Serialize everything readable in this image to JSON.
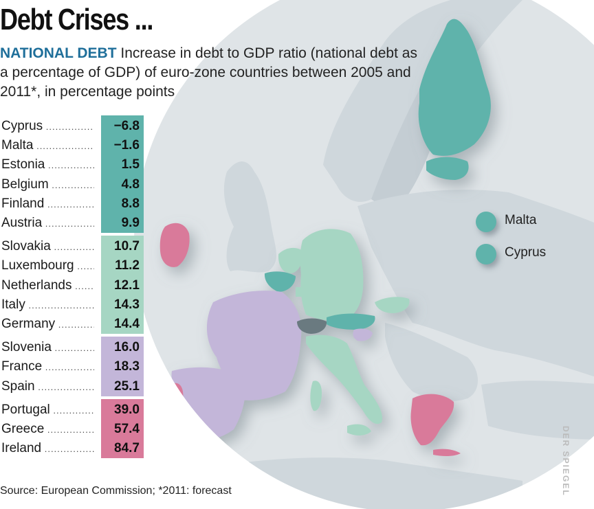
{
  "title": "Debt Crises ...",
  "subtitle_keyword": "NATIONAL DEBT",
  "subtitle_text": "Increase in debt to GDP ratio (national debt as a percentage of GDP) of euro-zone countries between 2005 and 2011*, in percentage points",
  "source": "Source: European Commission; *2011: forecast",
  "credit": "DER SPIEGEL",
  "colors": {
    "group1": "#5fb3ab",
    "group2": "#a6d6c3",
    "group3": "#c3b6d9",
    "group4": "#d97a9a",
    "land": "#cfd7dc",
    "sea": "#ffffff",
    "globe": "#dfe4e7"
  },
  "legend": [
    {
      "label": "Malta",
      "color": "#5fb3ab"
    },
    {
      "label": "Cyprus",
      "color": "#5fb3ab"
    }
  ],
  "chart_data": {
    "type": "table",
    "title": "NATIONAL DEBT Increase in debt to GDP ratio (national debt as a percentage of GDP) of euro-zone countries between 2005 and 2011*, in percentage points",
    "unit": "percentage points",
    "rows": [
      {
        "country": "Cyprus",
        "value": -6.8,
        "label": "−6.8",
        "group": 1
      },
      {
        "country": "Malta",
        "value": -1.6,
        "label": "−1.6",
        "group": 1
      },
      {
        "country": "Estonia",
        "value": 1.5,
        "label": "1.5",
        "group": 1
      },
      {
        "country": "Belgium",
        "value": 4.8,
        "label": "4.8",
        "group": 1
      },
      {
        "country": "Finland",
        "value": 8.8,
        "label": "8.8",
        "group": 1
      },
      {
        "country": "Austria",
        "value": 9.9,
        "label": "9.9",
        "group": 1
      },
      {
        "country": "Slovakia",
        "value": 10.7,
        "label": "10.7",
        "group": 2
      },
      {
        "country": "Luxembourg",
        "value": 11.2,
        "label": "11.2",
        "group": 2
      },
      {
        "country": "Netherlands",
        "value": 12.1,
        "label": "12.1",
        "group": 2
      },
      {
        "country": "Italy",
        "value": 14.3,
        "label": "14.3",
        "group": 2
      },
      {
        "country": "Germany",
        "value": 14.4,
        "label": "14.4",
        "group": 2
      },
      {
        "country": "Slovenia",
        "value": 16.0,
        "label": "16.0",
        "group": 3
      },
      {
        "country": "France",
        "value": 18.3,
        "label": "18.3",
        "group": 3
      },
      {
        "country": "Spain",
        "value": 25.1,
        "label": "25.1",
        "group": 3
      },
      {
        "country": "Portugal",
        "value": 39.0,
        "label": "39.0",
        "group": 4
      },
      {
        "country": "Greece",
        "value": 57.4,
        "label": "57.4",
        "group": 4
      },
      {
        "country": "Ireland",
        "value": 84.7,
        "label": "84.7",
        "group": 4
      }
    ]
  }
}
